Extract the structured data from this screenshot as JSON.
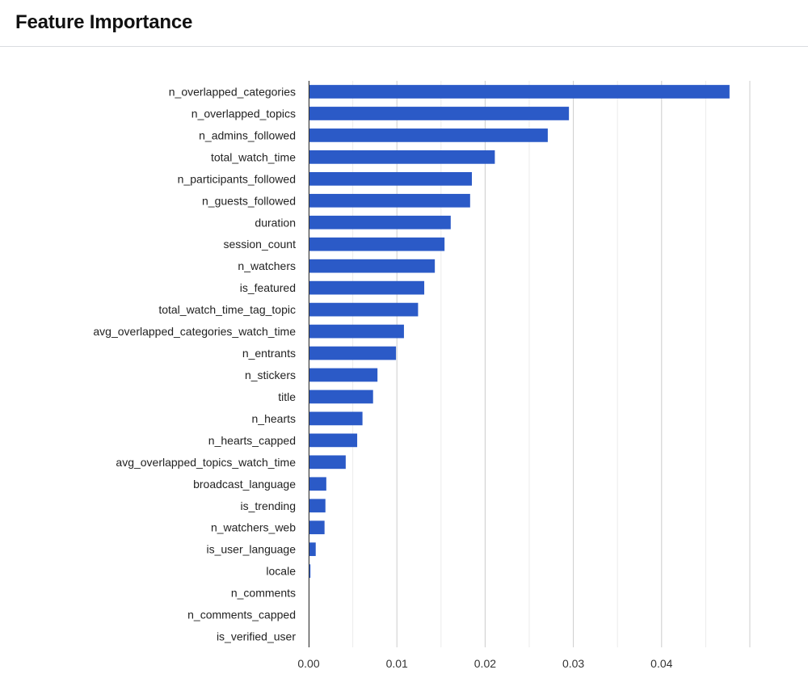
{
  "header": {
    "title": "Feature Importance"
  },
  "chart_data": {
    "type": "bar",
    "orientation": "horizontal",
    "title": "Feature Importance",
    "xlabel": "",
    "ylabel": "",
    "xlim": [
      0,
      0.05
    ],
    "x_ticks": [
      0,
      0.01,
      0.02,
      0.03,
      0.04
    ],
    "x_tick_labels": [
      "0.00",
      "0.01",
      "0.02",
      "0.03",
      "0.04"
    ],
    "grid": true,
    "legend": "none",
    "bar_color": "#2b5ac7",
    "categories": [
      "n_overlapped_categories",
      "n_overlapped_topics",
      "n_admins_followed",
      "total_watch_time",
      "n_participants_followed",
      "n_guests_followed",
      "duration",
      "session_count",
      "n_watchers",
      "is_featured",
      "total_watch_time_tag_topic",
      "avg_overlapped_categories_watch_time",
      "n_entrants",
      "n_stickers",
      "title",
      "n_hearts",
      "n_hearts_capped",
      "avg_overlapped_topics_watch_time",
      "broadcast_language",
      "is_trending",
      "n_watchers_web",
      "is_user_language",
      "locale",
      "n_comments",
      "n_comments_capped",
      "is_verified_user"
    ],
    "values": [
      0.0477,
      0.0295,
      0.0271,
      0.0211,
      0.0185,
      0.0183,
      0.0161,
      0.0154,
      0.0143,
      0.0131,
      0.0124,
      0.0108,
      0.0099,
      0.0078,
      0.0073,
      0.0061,
      0.0055,
      0.0042,
      0.002,
      0.0019,
      0.0018,
      0.0008,
      0.0002,
      0.0,
      0.0,
      0.0
    ]
  }
}
